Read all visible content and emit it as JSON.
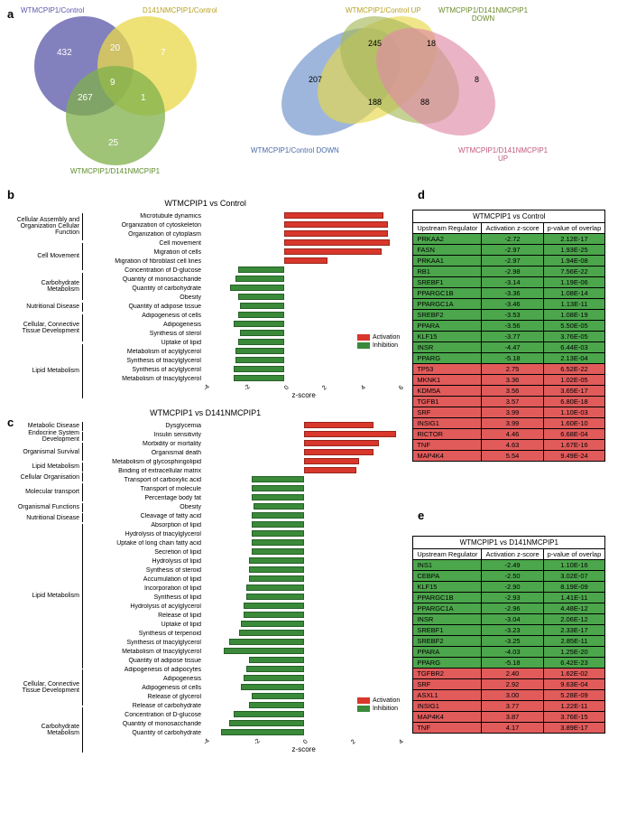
{
  "colors": {
    "activation": "#d9372b",
    "inhibition": "#3a8a3a",
    "green_cell": "#4ca64c",
    "red_cell": "#e15b5b",
    "venn_purple": "#5a55a8",
    "venn_yellow": "#e8d84a",
    "venn_green": "#7fb04a",
    "venn_blue": "#6b8fc9",
    "venn_olive": "#a8b85a",
    "venn_pink": "#e08aa8"
  },
  "panelA": {
    "venn3": {
      "labels": {
        "purple": "WTMCPIP1/Control",
        "yellow": "D141NMCPIP1/Control",
        "green": "WTMCPIP1/D141NMCPIP1"
      },
      "counts": {
        "a": "432",
        "b": "7",
        "c": "25",
        "ab": "20",
        "ac": "267",
        "bc": "1",
        "abc": "9"
      }
    },
    "venn4": {
      "labels": {
        "l1": "WTMCPIP1/Control DOWN",
        "l2": "WTMCPIP1/Control UP",
        "l3": "WTMCPIP1/D141NMCPIP1 DOWN",
        "l4": "WTMCPIP1/D141NMCPIP1 UP"
      },
      "counts": {
        "c1": "207",
        "c2": "245",
        "c3": "18",
        "c4": "8",
        "c5": "188",
        "c6": "88"
      }
    }
  },
  "panelB": {
    "title": "WTMCPIP1 vs Control",
    "xmin": -4,
    "xmax": 6,
    "categories": [
      {
        "name": "Cellular Assembly and Organization Cellular Function",
        "span": 3
      },
      {
        "name": "Cell Movement",
        "span": 3
      },
      {
        "name": "Carbohydrate Metabolism",
        "span": 3
      },
      {
        "name": "Nutritional Disease",
        "span": 1
      },
      {
        "name": "Cellular, Connective Tissue Development",
        "span": 3
      },
      {
        "name": "Lipid Metabolism",
        "span": 6
      }
    ],
    "rows": [
      {
        "label": "Microtubule dynamics",
        "v": 5.0
      },
      {
        "label": "Organization of cytoskeleton",
        "v": 5.2
      },
      {
        "label": "Organization of cytoplasm",
        "v": 5.2
      },
      {
        "label": "Cell movement",
        "v": 5.3
      },
      {
        "label": "Migration of cells",
        "v": 4.9
      },
      {
        "label": "Migration of fibroblast cell lines",
        "v": 2.2
      },
      {
        "label": "Concentration of D-glucose",
        "v": -2.3
      },
      {
        "label": "Quantity of monosaccharide",
        "v": -2.4
      },
      {
        "label": "Quantity of carbohydrate",
        "v": -2.7
      },
      {
        "label": "Obesity",
        "v": -2.3
      },
      {
        "label": "Quantity of adipose tissue",
        "v": -2.2
      },
      {
        "label": "Adipogenesis of cells",
        "v": -2.3
      },
      {
        "label": "Adipogenesis",
        "v": -2.5
      },
      {
        "label": "Synthesis of sterol",
        "v": -2.2
      },
      {
        "label": "Uptake of lipid",
        "v": -2.3
      },
      {
        "label": "Metabolism of acylglycerol",
        "v": -2.4
      },
      {
        "label": "Synthesis of triacylglycerol",
        "v": -2.4
      },
      {
        "label": "Synthesis of acylglycerol",
        "v": -2.5
      },
      {
        "label": "Metabolism of triacylglycerol",
        "v": -2.5
      }
    ],
    "legend": {
      "act": "Activation",
      "inh": "Inhibition"
    },
    "xlabel": "z-score"
  },
  "panelC": {
    "title": "WTMCPIP1 vs D141NMCPIP1",
    "xmin": -4,
    "xmax": 4,
    "categories": [
      {
        "name": "Metabolic Disease",
        "span": 1
      },
      {
        "name": "Endocrine System Development",
        "span": 1
      },
      {
        "name": "Organismal Survival",
        "span": 2
      },
      {
        "name": "Lipid Metabolism",
        "span": 1
      },
      {
        "name": "Cellular Organisation",
        "span": 1
      },
      {
        "name": "Molecular transport",
        "span": 2
      },
      {
        "name": "Organismal Functions",
        "span": 1
      },
      {
        "name": "Nutritional Disease",
        "span": 1
      },
      {
        "name": "Lipid Metabolism",
        "span": 16
      },
      {
        "name": "Cellular, Connective Tissue Development",
        "span": 4
      },
      {
        "name": "Carbohydrate Metabolism",
        "span": 5
      }
    ],
    "rows": [
      {
        "label": "Dysglycemia",
        "v": 2.8
      },
      {
        "label": "Insulin sensitivity",
        "v": 3.7
      },
      {
        "label": "Morbidity or mortality",
        "v": 3.0
      },
      {
        "label": "Organismal death",
        "v": 2.8
      },
      {
        "label": "Metabolism of glycosphingolipid",
        "v": 2.2
      },
      {
        "label": "Binding of extracellular matrix",
        "v": 2.1
      },
      {
        "label": "Transport of carboxylic acid",
        "v": -2.1
      },
      {
        "label": "Transport of molecule",
        "v": -2.1
      },
      {
        "label": "Percentage body fat",
        "v": -2.1
      },
      {
        "label": "Obesity",
        "v": -2.0
      },
      {
        "label": "Cleavage of fatty acid",
        "v": -2.1
      },
      {
        "label": "Absorption of lipid",
        "v": -2.1
      },
      {
        "label": "Hydrolysis of triacylglycerol",
        "v": -2.1
      },
      {
        "label": "Uptake of long chain fatty acid",
        "v": -2.1
      },
      {
        "label": "Secretion of lipid",
        "v": -2.1
      },
      {
        "label": "Hydrolysis of lipid",
        "v": -2.2
      },
      {
        "label": "Synthesis of steroid",
        "v": -2.2
      },
      {
        "label": "Accumulation of lipid",
        "v": -2.2
      },
      {
        "label": "Incorporation of lipid",
        "v": -2.3
      },
      {
        "label": "Synthesis of lipid",
        "v": -2.3
      },
      {
        "label": "Hydrolysis of acylglycerol",
        "v": -2.4
      },
      {
        "label": "Release of lipid",
        "v": -2.4
      },
      {
        "label": "Uptake of lipid",
        "v": -2.5
      },
      {
        "label": "Synthesis of terpenoid",
        "v": -2.6
      },
      {
        "label": "Synthesis of triacylglycerol",
        "v": -3.0
      },
      {
        "label": "Metabolism of triacylglycerol",
        "v": -3.2
      },
      {
        "label": "Quantity of adipose tissue",
        "v": -2.2
      },
      {
        "label": "Adipogenesis of adipocytes",
        "v": -2.3
      },
      {
        "label": "Adipogenesis",
        "v": -2.4
      },
      {
        "label": "Adipogenesis of cells",
        "v": -2.5
      },
      {
        "label": "Release of glycerol",
        "v": -2.1
      },
      {
        "label": "Release of carbohydrate",
        "v": -2.2
      },
      {
        "label": "Concentration of D-glucose",
        "v": -2.8
      },
      {
        "label": "Quantity of monosaccharide",
        "v": -3.0
      },
      {
        "label": "Quantity of carbohydrate",
        "v": -3.3
      }
    ],
    "legend": {
      "act": "Activation",
      "inh": "Inhibition"
    },
    "xlabel": "z-score"
  },
  "panelD": {
    "title": "WTMCPIP1 vs Control",
    "headers": [
      "Upstream Regulator",
      "Activation z-score",
      "p-value of overlap"
    ],
    "rows": [
      {
        "n": "PRKAA2",
        "z": "-2.72",
        "p": "2.12E-17",
        "c": "g"
      },
      {
        "n": "FASN",
        "z": "-2.97",
        "p": "1.93E-25",
        "c": "g"
      },
      {
        "n": "PRKAA1",
        "z": "-2.97",
        "p": "1.94E-08",
        "c": "g"
      },
      {
        "n": "RB1",
        "z": "-2.98",
        "p": "7.56E-22",
        "c": "g"
      },
      {
        "n": "SREBF1",
        "z": "-3.14",
        "p": "1.19E-06",
        "c": "g"
      },
      {
        "n": "PPARGC1B",
        "z": "-3.36",
        "p": "1.08E-14",
        "c": "g"
      },
      {
        "n": "PPARGC1A",
        "z": "-3.46",
        "p": "1.13E-11",
        "c": "g"
      },
      {
        "n": "SREBF2",
        "z": "-3.53",
        "p": "1.08E-19",
        "c": "g"
      },
      {
        "n": "PPARA",
        "z": "-3.56",
        "p": "5.50E-05",
        "c": "g"
      },
      {
        "n": "KLF15",
        "z": "-3.77",
        "p": "3.76E-05",
        "c": "g"
      },
      {
        "n": "INSR",
        "z": "-4.47",
        "p": "6.44E-03",
        "c": "g"
      },
      {
        "n": "PPARG",
        "z": "-5.18",
        "p": "2.13E-04",
        "c": "g"
      },
      {
        "n": "TP53",
        "z": "2.75",
        "p": "6.52E-22",
        "c": "r"
      },
      {
        "n": "MKNK1",
        "z": "3.36",
        "p": "1.02E-05",
        "c": "r"
      },
      {
        "n": "KDM5A",
        "z": "3.56",
        "p": "3.65E-17",
        "c": "r"
      },
      {
        "n": "TGFB1",
        "z": "3.57",
        "p": "6.80E-18",
        "c": "r"
      },
      {
        "n": "SRF",
        "z": "3.99",
        "p": "1.10E-03",
        "c": "r"
      },
      {
        "n": "INSIG1",
        "z": "3.99",
        "p": "1.60E-10",
        "c": "r"
      },
      {
        "n": "RICTOR",
        "z": "4.46",
        "p": "6.68E-04",
        "c": "r"
      },
      {
        "n": "TNF",
        "z": "4.63",
        "p": "1.67E-16",
        "c": "r"
      },
      {
        "n": "MAP4K4",
        "z": "5.54",
        "p": "9.49E-24",
        "c": "r"
      }
    ]
  },
  "panelE": {
    "title": "WTMCPIP1 vs D141NMCPIP1",
    "headers": [
      "Upstream Regulator",
      "Activation z-score",
      "p-value of overlap"
    ],
    "rows": [
      {
        "n": "INS1",
        "z": "-2.49",
        "p": "1.10E-16",
        "c": "g"
      },
      {
        "n": "CEBPA",
        "z": "-2.50",
        "p": "3.02E-07",
        "c": "g"
      },
      {
        "n": "KLF15",
        "z": "-2.90",
        "p": "8.19E-09",
        "c": "g"
      },
      {
        "n": "PPARGC1B",
        "z": "-2.93",
        "p": "1.41E-11",
        "c": "g"
      },
      {
        "n": "PPARGC1A",
        "z": "-2.96",
        "p": "4.48E-12",
        "c": "g"
      },
      {
        "n": "INSR",
        "z": "-3.04",
        "p": "2.06E-12",
        "c": "g"
      },
      {
        "n": "SREBF1",
        "z": "-3.23",
        "p": "2.33E-17",
        "c": "g"
      },
      {
        "n": "SREBF2",
        "z": "-3.25",
        "p": "2.85E-11",
        "c": "g"
      },
      {
        "n": "PPARA",
        "z": "-4.03",
        "p": "1.25E-20",
        "c": "g"
      },
      {
        "n": "PPARG",
        "z": "-5.18",
        "p": "6.42E-23",
        "c": "g"
      },
      {
        "n": "TGFBR2",
        "z": "2.40",
        "p": "1.62E-02",
        "c": "r"
      },
      {
        "n": "SRF",
        "z": "2.92",
        "p": "9.63E-04",
        "c": "r"
      },
      {
        "n": "ASXL1",
        "z": "3.00",
        "p": "5.28E-09",
        "c": "r"
      },
      {
        "n": "INSIG1",
        "z": "3.77",
        "p": "1.22E-11",
        "c": "r"
      },
      {
        "n": "MAP4K4",
        "z": "3.87",
        "p": "3.76E-15",
        "c": "r"
      },
      {
        "n": "TNF",
        "z": "4.17",
        "p": "3.89E-17",
        "c": "r"
      }
    ]
  }
}
